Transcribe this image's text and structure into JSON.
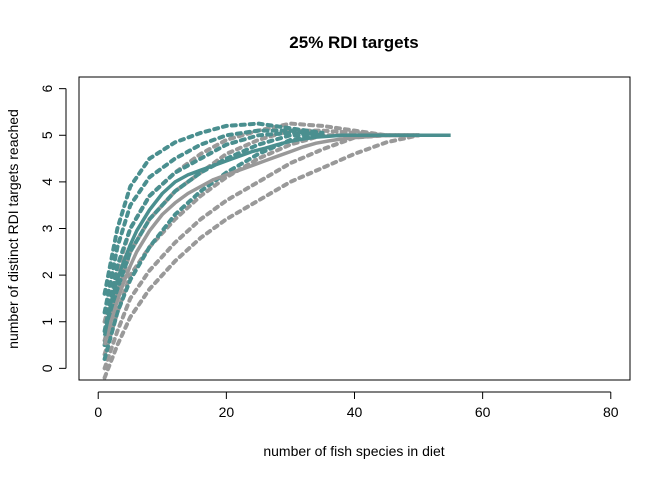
{
  "chart_data": {
    "type": "scatter",
    "title": "25% RDI targets",
    "xlabel": "number of fish species in diet",
    "ylabel": "number of distinct RDI targets reached",
    "xlim": [
      -3,
      83
    ],
    "ylim": [
      -0.25,
      6.25
    ],
    "xticks": [
      0,
      20,
      40,
      60,
      80
    ],
    "yticks": [
      0,
      1,
      2,
      3,
      4,
      5,
      6
    ],
    "xtick_labels": [
      "0",
      "20",
      "40",
      "60",
      "80"
    ],
    "ytick_labels": [
      "0",
      "1",
      "2",
      "3",
      "4",
      "5",
      "6"
    ],
    "grid": false,
    "legend": null,
    "series": [
      {
        "name": "grey-bands",
        "role": "dashed-quantile-lines",
        "color": "#999999",
        "lines": [
          {
            "x": [
              1,
              3,
              5,
              8,
              12,
              16,
              20,
              25,
              30,
              35,
              40,
              45,
              50
            ],
            "y": [
              -0.2,
              0.5,
              1.1,
              1.7,
              2.3,
              2.8,
              3.2,
              3.6,
              4.0,
              4.3,
              4.6,
              4.85,
              5.0
            ]
          },
          {
            "x": [
              1,
              3,
              5,
              8,
              12,
              16,
              20,
              25,
              30,
              35,
              40,
              45,
              50
            ],
            "y": [
              0.0,
              0.8,
              1.5,
              2.1,
              2.7,
              3.2,
              3.6,
              4.0,
              4.4,
              4.7,
              4.95,
              5.0,
              5.0
            ]
          },
          {
            "x": [
              1,
              3,
              5,
              8,
              12,
              16,
              20,
              25,
              30,
              35,
              40,
              45,
              50
            ],
            "y": [
              0.3,
              1.2,
              2.0,
              2.6,
              3.2,
              3.7,
              4.1,
              4.5,
              4.8,
              5.0,
              5.0,
              5.0,
              5.0
            ]
          },
          {
            "x": [
              1,
              3,
              5,
              8,
              12,
              16,
              20,
              25,
              30,
              35,
              40,
              45,
              50
            ],
            "y": [
              0.6,
              1.6,
              2.5,
              3.2,
              3.8,
              4.2,
              4.6,
              4.9,
              5.1,
              5.1,
              5.05,
              5.0,
              5.0
            ]
          },
          {
            "x": [
              1,
              3,
              5,
              8,
              12,
              16,
              20,
              25,
              30,
              35,
              40,
              45,
              50
            ],
            "y": [
              1.0,
              2.1,
              3.0,
              3.7,
              4.2,
              4.6,
              4.9,
              5.1,
              5.25,
              5.2,
              5.1,
              5.0,
              5.0
            ]
          }
        ]
      },
      {
        "name": "teal-bands",
        "role": "dashed-quantile-lines",
        "color": "#4a8f8f",
        "lines": [
          {
            "x": [
              1,
              3,
              5,
              8,
              12,
              16,
              20,
              25,
              30,
              35
            ],
            "y": [
              0.2,
              1.2,
              1.9,
              2.6,
              3.3,
              3.8,
              4.2,
              4.6,
              4.9,
              5.0
            ]
          },
          {
            "x": [
              1,
              3,
              5,
              8,
              12,
              16,
              20,
              25,
              30,
              35
            ],
            "y": [
              0.5,
              1.7,
              2.5,
              3.2,
              3.8,
              4.2,
              4.5,
              4.8,
              5.0,
              5.0
            ]
          },
          {
            "x": [
              1,
              3,
              5,
              8,
              12,
              16,
              20,
              25,
              30,
              35
            ],
            "y": [
              0.8,
              2.2,
              3.0,
              3.7,
              4.2,
              4.5,
              4.8,
              5.0,
              5.05,
              5.0
            ]
          },
          {
            "x": [
              1,
              3,
              5,
              8,
              12,
              16,
              20,
              25,
              30,
              35
            ],
            "y": [
              1.2,
              2.6,
              3.5,
              4.1,
              4.5,
              4.8,
              5.0,
              5.1,
              5.1,
              5.0
            ]
          },
          {
            "x": [
              1,
              3,
              5,
              8,
              12,
              16,
              20,
              25,
              30,
              35
            ],
            "y": [
              1.6,
              3.0,
              3.9,
              4.5,
              4.85,
              5.05,
              5.2,
              5.25,
              5.15,
              5.05
            ]
          }
        ]
      },
      {
        "name": "grey-mean",
        "role": "solid-line",
        "color": "#999999",
        "x": [
          1,
          2,
          3,
          4,
          5,
          6,
          8,
          10,
          12,
          14,
          16,
          18,
          20,
          22,
          24,
          26,
          28,
          30,
          32,
          34,
          36,
          38,
          40,
          42,
          44,
          46,
          48,
          50,
          52,
          55
        ],
        "y": [
          0.5,
          1.0,
          1.45,
          1.85,
          2.2,
          2.5,
          2.95,
          3.3,
          3.55,
          3.75,
          3.9,
          4.05,
          4.15,
          4.25,
          4.35,
          4.45,
          4.55,
          4.65,
          4.75,
          4.83,
          4.88,
          4.92,
          4.95,
          4.97,
          4.99,
          5.0,
          5.0,
          5.0,
          5.0,
          5.0
        ]
      },
      {
        "name": "teal-mean",
        "role": "solid-line",
        "color": "#4a8f8f",
        "x": [
          1,
          2,
          3,
          4,
          5,
          6,
          8,
          10,
          12,
          14,
          16,
          18,
          20,
          22,
          24,
          26,
          28,
          30,
          32,
          34,
          36,
          38,
          40,
          45,
          50,
          55
        ],
        "y": [
          0.7,
          1.4,
          1.9,
          2.3,
          2.65,
          2.95,
          3.4,
          3.75,
          4.0,
          4.15,
          4.25,
          4.35,
          4.45,
          4.55,
          4.65,
          4.72,
          4.8,
          4.87,
          4.92,
          4.96,
          4.98,
          5.0,
          5.0,
          5.0,
          5.0,
          5.0
        ]
      }
    ]
  }
}
